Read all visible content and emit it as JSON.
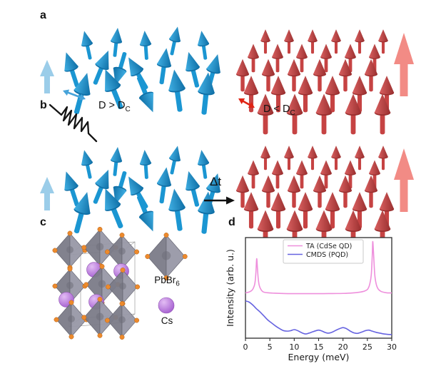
{
  "figure": {
    "background": "#ffffff"
  },
  "panel_labels": {
    "a": "a",
    "b": "b",
    "c": "c",
    "d": "d"
  },
  "panel_a": {
    "left_condition": {
      "base": "D > D",
      "sub": "C"
    },
    "right_condition": {
      "base": "D < D",
      "sub": "C"
    }
  },
  "panel_b": {
    "delay_label": "Δt"
  },
  "panel_c": {
    "octahedron_label": {
      "base": "PbBr",
      "sub": "6"
    },
    "cs_label": "Cs"
  },
  "colors": {
    "spin_blue": "#1b96d2",
    "spin_blue_dark": "#0f6fa6",
    "spin_blue_light": "#41b0e4",
    "net_arrow_blue": "#9bcde9",
    "spin_red": "#c64343",
    "spin_red_dark": "#9a2f2f",
    "spin_red_light": "#d96060",
    "net_arrow_red": "#f28b85",
    "double_arrow_blue": "#47a3d9",
    "double_arrow_red": "#e02414",
    "octahedron_gray": "#9898a6",
    "octahedron_gray_dark": "#7b7b88",
    "bromine_orange": "#ed8a2c",
    "cesium_purple": "#bb77dd",
    "pulse_black": "#141414"
  },
  "chart_data": {
    "type": "line",
    "title": "",
    "xlabel": "Energy (meV)",
    "ylabel": "Intensity (arb. u.)",
    "xlim": [
      0,
      30
    ],
    "ylim": [
      0,
      1
    ],
    "xticks": [
      0,
      5,
      10,
      15,
      20,
      25,
      30
    ],
    "grid": false,
    "legend_position": "upper center",
    "series": [
      {
        "name": "TA (CdSe QD)",
        "color": "#ee8fdc",
        "x": [
          0,
          0.8,
          1.4,
          1.8,
          2.0,
          2.15,
          2.3,
          2.45,
          2.6,
          2.8,
          3.1,
          3.5,
          4,
          5,
          6,
          8,
          10,
          12,
          14,
          16,
          18,
          20,
          22,
          23.5,
          24.5,
          25.1,
          25.5,
          25.8,
          26.0,
          26.1,
          26.25,
          26.5,
          26.8,
          27.2,
          27.8,
          28.5,
          29.2,
          30
        ],
        "y": [
          0.45,
          0.46,
          0.48,
          0.52,
          0.57,
          0.66,
          0.79,
          0.7,
          0.6,
          0.53,
          0.49,
          0.465,
          0.455,
          0.45,
          0.447,
          0.444,
          0.443,
          0.443,
          0.443,
          0.443,
          0.444,
          0.445,
          0.45,
          0.458,
          0.47,
          0.49,
          0.54,
          0.63,
          0.82,
          0.96,
          0.86,
          0.64,
          0.54,
          0.49,
          0.465,
          0.455,
          0.45,
          0.45
        ]
      },
      {
        "name": "CMDS (PQD)",
        "color": "#6663e0",
        "x": [
          0,
          0.7,
          1.5,
          2.2,
          3,
          3.8,
          4.6,
          5.4,
          6.2,
          7,
          7.8,
          8.6,
          9.3,
          10,
          10.7,
          11.5,
          12.3,
          13,
          13.7,
          14.5,
          15,
          15.6,
          16.3,
          17,
          17.8,
          18.6,
          19.3,
          20,
          20.7,
          21.5,
          22.3,
          23,
          23.8,
          24.6,
          25.3,
          26,
          26.8,
          27.6,
          28.4,
          29.2,
          30
        ],
        "y": [
          0.37,
          0.36,
          0.33,
          0.295,
          0.26,
          0.22,
          0.18,
          0.15,
          0.12,
          0.095,
          0.075,
          0.07,
          0.075,
          0.085,
          0.075,
          0.055,
          0.042,
          0.05,
          0.062,
          0.075,
          0.08,
          0.073,
          0.058,
          0.05,
          0.06,
          0.08,
          0.095,
          0.105,
          0.095,
          0.07,
          0.052,
          0.048,
          0.06,
          0.075,
          0.08,
          0.07,
          0.058,
          0.05,
          0.042,
          0.038,
          0.036
        ]
      }
    ]
  }
}
